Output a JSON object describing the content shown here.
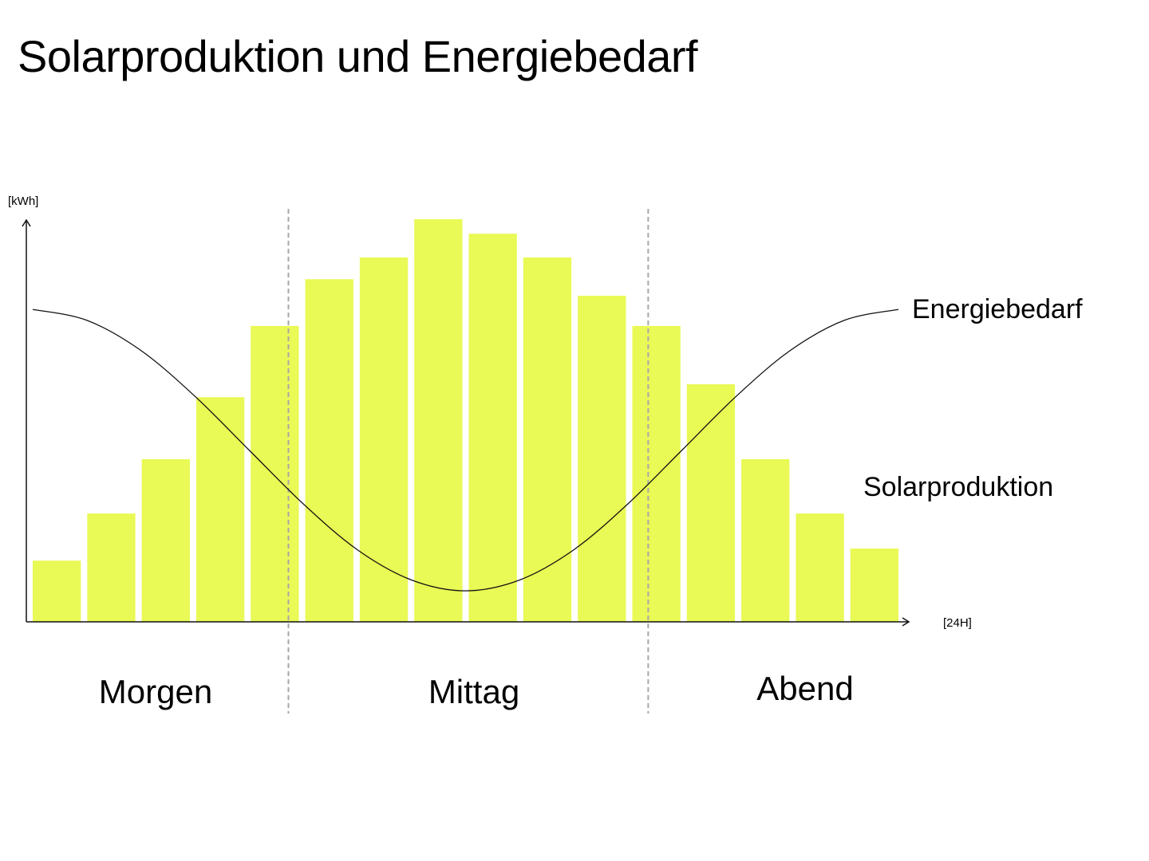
{
  "chart_data": {
    "type": "bar",
    "title": "Solarproduktion und Energiebedarf",
    "ylabel": "[kWh]",
    "xlabel": "[24H]",
    "ylim": [
      0,
      100
    ],
    "grid": false,
    "colors": {
      "bars": "#e9f955",
      "curve": "#111111",
      "dividers": "#a8a8a8",
      "axis": "#111111"
    },
    "series": [
      {
        "name": "Solarproduktion",
        "type": "bar",
        "values": [
          15.2,
          26.9,
          40.4,
          55.8,
          73.5,
          85.1,
          90.5,
          100,
          96.4,
          90.5,
          81.0,
          73.5,
          59.0,
          40.4,
          26.9,
          18.2
        ]
      },
      {
        "name": "Energiebedarf",
        "type": "line",
        "x": [
          0,
          1,
          2,
          3,
          4,
          5,
          6,
          7,
          8,
          9,
          10,
          11,
          12,
          13,
          14,
          15,
          16
        ],
        "values": [
          77.6,
          74.9,
          67.4,
          56.0,
          42.65,
          29.3,
          17.9,
          10.4,
          7.7,
          10.4,
          17.9,
          29.3,
          42.65,
          56.0,
          67.4,
          74.9,
          77.6
        ]
      }
    ],
    "periods": [
      "Morgen",
      "Mittag",
      "Abend"
    ],
    "period_boundaries": [
      4.75,
      11.35
    ]
  }
}
